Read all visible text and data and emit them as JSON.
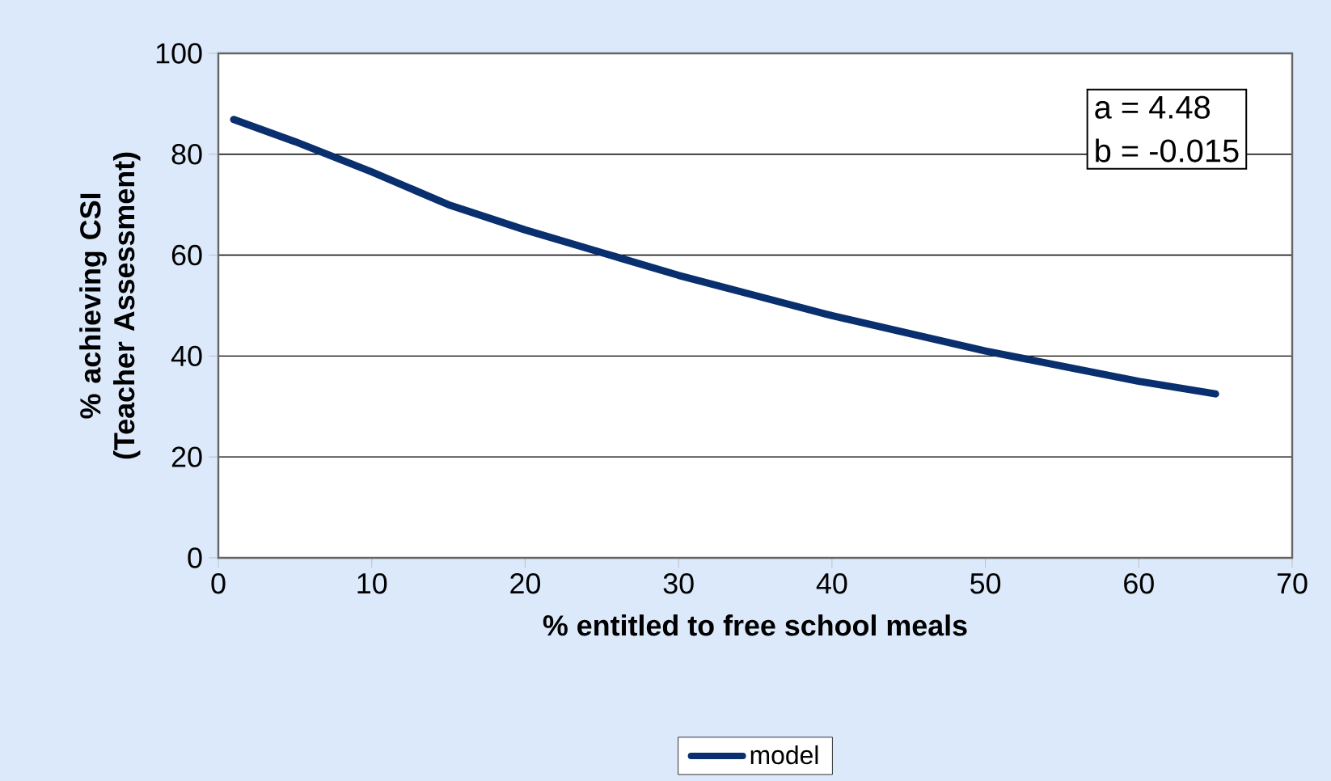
{
  "chart_data": {
    "type": "line",
    "xlabel": "% entitled to free school meals",
    "ylabel": "% achieving CSI (Teacher Assessment)",
    "x": [
      1,
      5,
      10,
      15,
      20,
      25,
      30,
      35,
      40,
      45,
      50,
      55,
      60,
      65
    ],
    "series": [
      {
        "name": "model",
        "color": "#0a2f6e",
        "values": [
          86.9,
          82.5,
          76.5,
          70,
          65,
          60.5,
          56,
          52,
          48,
          44.5,
          41,
          38,
          35,
          32.5
        ]
      }
    ],
    "xlim": [
      0,
      70
    ],
    "ylim": [
      0,
      100
    ],
    "xticks": [
      0,
      10,
      20,
      30,
      40,
      50,
      60,
      70
    ],
    "yticks": [
      0,
      20,
      40,
      60,
      80,
      100
    ],
    "grid": "y",
    "legend": "bottom",
    "marker": "none",
    "line_style": "solid",
    "annotations": [
      "a = 4.48",
      "b = -0.015"
    ]
  }
}
